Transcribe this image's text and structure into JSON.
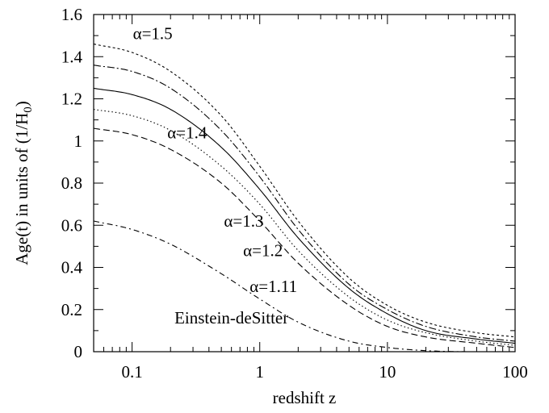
{
  "chart_data": {
    "type": "line",
    "title": "",
    "xlabel": "redshift z",
    "ylabel": "Age(t) in units of (1/H",
    "ylabel_sub": "0",
    "ylabel_tail": ")",
    "xscale": "log",
    "xlim": [
      0.05,
      100
    ],
    "ylim": [
      0,
      1.6
    ],
    "grid": false,
    "x_ticks": [
      {
        "value": 0.1,
        "label": "0.1"
      },
      {
        "value": 1,
        "label": "1"
      },
      {
        "value": 10,
        "label": "10"
      },
      {
        "value": 100,
        "label": "100"
      }
    ],
    "y_ticks": [
      {
        "value": 0,
        "label": "0"
      },
      {
        "value": 0.2,
        "label": "0.2"
      },
      {
        "value": 0.4,
        "label": "0.4"
      },
      {
        "value": 0.6,
        "label": "0.6"
      },
      {
        "value": 0.8,
        "label": "0.8"
      },
      {
        "value": 1.0,
        "label": "1"
      },
      {
        "value": 1.2,
        "label": "1.2"
      },
      {
        "value": 1.4,
        "label": "1.4"
      },
      {
        "value": 1.6,
        "label": "1.6"
      }
    ],
    "series": [
      {
        "name": "α=1.5",
        "style": "short-dash",
        "x": [
          0.05,
          0.1,
          0.2,
          0.5,
          1,
          2,
          5,
          10,
          20,
          50,
          100
        ],
        "y": [
          1.46,
          1.42,
          1.33,
          1.12,
          0.88,
          0.62,
          0.35,
          0.22,
          0.14,
          0.09,
          0.07
        ]
      },
      {
        "name": "",
        "style": "dash-dot",
        "x": [
          0.05,
          0.1,
          0.2,
          0.5,
          1,
          2,
          5,
          10,
          20,
          50,
          100
        ],
        "y": [
          1.36,
          1.33,
          1.25,
          1.05,
          0.83,
          0.58,
          0.32,
          0.2,
          0.12,
          0.07,
          0.05
        ]
      },
      {
        "name": "α=1.4",
        "style": "solid",
        "x": [
          0.05,
          0.1,
          0.2,
          0.5,
          1,
          2,
          5,
          10,
          20,
          50,
          100
        ],
        "y": [
          1.25,
          1.22,
          1.15,
          0.97,
          0.77,
          0.54,
          0.3,
          0.18,
          0.1,
          0.06,
          0.04
        ]
      },
      {
        "name": "α=1.3",
        "style": "dotted",
        "x": [
          0.05,
          0.1,
          0.2,
          0.5,
          1,
          2,
          5,
          10,
          20,
          50,
          100
        ],
        "y": [
          1.15,
          1.12,
          1.05,
          0.88,
          0.7,
          0.48,
          0.26,
          0.15,
          0.09,
          0.05,
          0.03
        ]
      },
      {
        "name": "α=1.2",
        "style": "long-dash",
        "x": [
          0.05,
          0.1,
          0.2,
          0.5,
          1,
          2,
          5,
          10,
          20,
          50,
          100
        ],
        "y": [
          1.06,
          1.03,
          0.96,
          0.8,
          0.62,
          0.42,
          0.22,
          0.12,
          0.07,
          0.04,
          0.02
        ]
      },
      {
        "name": "α=1.11",
        "style": "dash-dot-sparse",
        "x": [
          0.05,
          0.1,
          0.2,
          0.5,
          1,
          2,
          5,
          10,
          20,
          50,
          100
        ],
        "y": [
          0.62,
          0.58,
          0.51,
          0.37,
          0.25,
          0.14,
          0.05,
          0.02,
          0.005,
          0.0,
          0.0
        ]
      }
    ],
    "annotations": [
      {
        "text": "α=1.5",
        "x": 0.145,
        "y": 1.51
      },
      {
        "text": "α=1.4",
        "x": 0.27,
        "y": 1.04
      },
      {
        "text": "α=1.3",
        "x": 0.75,
        "y": 0.62
      },
      {
        "text": "α=1.2",
        "x": 1.06,
        "y": 0.48
      },
      {
        "text": "α=1.11",
        "x": 1.28,
        "y": 0.31
      },
      {
        "text": "Einstein-deSitter",
        "x": 0.6,
        "y": 0.16
      }
    ]
  }
}
